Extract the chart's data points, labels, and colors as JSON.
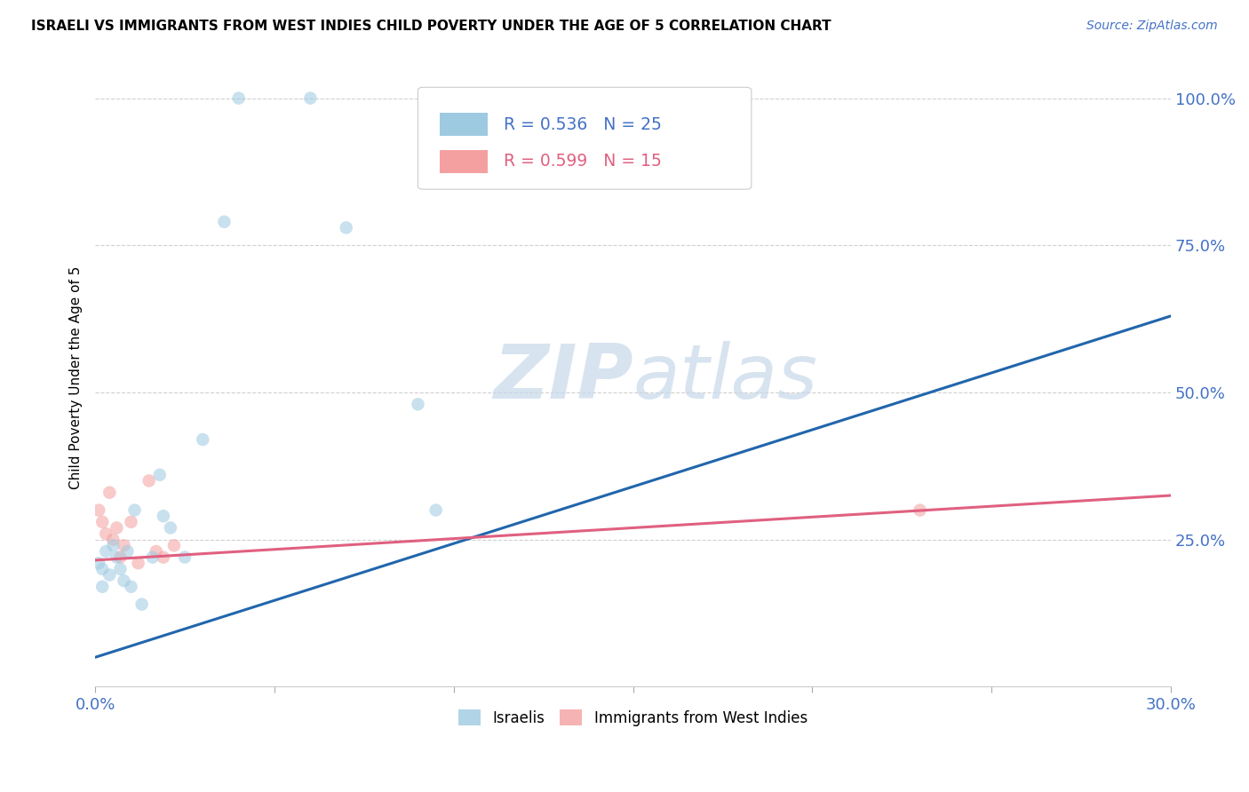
{
  "title": "ISRAELI VS IMMIGRANTS FROM WEST INDIES CHILD POVERTY UNDER THE AGE OF 5 CORRELATION CHART",
  "source": "Source: ZipAtlas.com",
  "ylabel_label": "Child Poverty Under the Age of 5",
  "xmin": 0.0,
  "xmax": 0.3,
  "ymin": 0.0,
  "ymax": 1.05,
  "background_color": "#ffffff",
  "grid_color": "#d0d0d0",
  "israelis_color": "#9ecae1",
  "west_indies_color": "#f4a0a0",
  "israeli_line_color": "#2166ac",
  "west_indies_line_color": "#e06080",
  "R_israeli": 0.536,
  "N_israeli": 25,
  "R_west_indies": 0.599,
  "N_west_indies": 15,
  "marker_size": 110,
  "marker_alpha": 0.55,
  "line_width": 2.2,
  "israeli_x": [
    0.001,
    0.002,
    0.002,
    0.003,
    0.004,
    0.005,
    0.006,
    0.007,
    0.008,
    0.009,
    0.01,
    0.011,
    0.013,
    0.016,
    0.018,
    0.019,
    0.021,
    0.025,
    0.03,
    0.036,
    0.04,
    0.06,
    0.07,
    0.09,
    0.095
  ],
  "israeli_y": [
    0.21,
    0.2,
    0.17,
    0.23,
    0.19,
    0.24,
    0.22,
    0.2,
    0.18,
    0.23,
    0.17,
    0.3,
    0.14,
    0.22,
    0.36,
    0.29,
    0.27,
    0.22,
    0.42,
    0.79,
    1.0,
    1.0,
    0.78,
    0.48,
    0.3
  ],
  "west_indies_x": [
    0.001,
    0.002,
    0.003,
    0.004,
    0.005,
    0.006,
    0.007,
    0.008,
    0.01,
    0.012,
    0.015,
    0.017,
    0.019,
    0.022,
    0.23
  ],
  "west_indies_y": [
    0.3,
    0.28,
    0.26,
    0.33,
    0.25,
    0.27,
    0.22,
    0.24,
    0.28,
    0.21,
    0.35,
    0.23,
    0.22,
    0.24,
    0.3
  ],
  "israeli_line_x0": 0.0,
  "israeli_line_y0": 0.05,
  "israeli_line_x1": 0.3,
  "israeli_line_y1": 0.63,
  "wi_line_x0": 0.0,
  "wi_line_y0": 0.215,
  "wi_line_x1": 0.3,
  "wi_line_y1": 0.325
}
